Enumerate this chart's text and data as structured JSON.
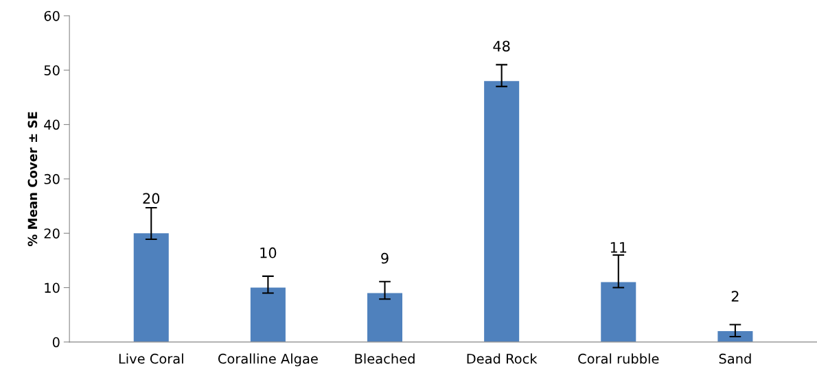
{
  "chart_data": {
    "type": "bar",
    "ylabel": "% Mean Cover ± SE",
    "categories": [
      "Live Coral",
      "Coralline Algae",
      "Bleached",
      "Dead Rock",
      "Coral rubble",
      "Sand"
    ],
    "values": [
      20,
      10,
      9,
      48,
      11,
      2
    ],
    "errors": [
      [
        18.9,
        24.7
      ],
      [
        9.0,
        12.1
      ],
      [
        7.9,
        11.1
      ],
      [
        47.0,
        51.0
      ],
      [
        10.0,
        16.0
      ],
      [
        1.0,
        3.2
      ]
    ],
    "color": "#4f81bd",
    "ylim": [
      0,
      60
    ],
    "yticks": [
      0,
      10,
      20,
      30,
      40,
      50,
      60
    ],
    "grid": false,
    "data_labels": true
  }
}
